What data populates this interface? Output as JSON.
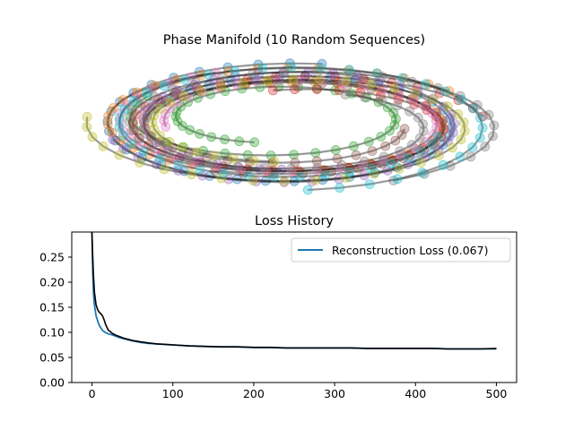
{
  "chart_data": [
    {
      "type": "scatter",
      "title": "Phase Manifold (10 Random Sequences)",
      "axes_visible": false,
      "marker": "circle",
      "marker_alpha": 0.35,
      "path_color": "#000000",
      "path_alpha": 0.25,
      "palette": [
        "#1f77b4",
        "#ff7f0e",
        "#2ca02c",
        "#d62728",
        "#9467bd",
        "#8c564b",
        "#e377c2",
        "#7f7f7f",
        "#bcbd22",
        "#17becf"
      ],
      "series": [
        {
          "center": [
            -0.05,
            0.0
          ],
          "radius": [
            1.95,
            0.82
          ],
          "turns": 1.25,
          "decay": 0.25,
          "phase": 1.4
        },
        {
          "center": [
            -0.08,
            0.03
          ],
          "radius": [
            2.0,
            0.75
          ],
          "turns": 1.2,
          "decay": 0.28,
          "phase": 0.6
        },
        {
          "center": [
            -0.2,
            0.1
          ],
          "radius": [
            1.5,
            0.55
          ],
          "turns": 1.3,
          "decay": 0.4,
          "phase": 2.6
        },
        {
          "center": [
            0.05,
            -0.02
          ],
          "radius": [
            1.9,
            0.7
          ],
          "turns": 1.25,
          "decay": 0.3,
          "phase": 0.2
        },
        {
          "center": [
            -0.05,
            0.02
          ],
          "radius": [
            1.85,
            0.8
          ],
          "turns": 1.2,
          "decay": 0.25,
          "phase": 3.4
        },
        {
          "center": [
            -0.1,
            0.0
          ],
          "radius": [
            1.75,
            0.65
          ],
          "turns": 1.3,
          "decay": 0.3,
          "phase": 4.3
        },
        {
          "center": [
            -0.05,
            0.04
          ],
          "radius": [
            1.8,
            0.72
          ],
          "turns": 1.2,
          "decay": 0.3,
          "phase": 2.0
        },
        {
          "center": [
            0.0,
            0.0
          ],
          "radius": [
            2.15,
            0.82
          ],
          "turns": 1.35,
          "decay": 0.45,
          "phase": 5.2
        },
        {
          "center": [
            -0.02,
            0.0
          ],
          "radius": [
            2.1,
            0.8
          ],
          "turns": 1.25,
          "decay": 0.4,
          "phase": 3.0
        },
        {
          "center": [
            -0.04,
            0.0
          ],
          "radius": [
            2.05,
            0.85
          ],
          "turns": 1.2,
          "decay": 0.25,
          "phase": 4.8
        }
      ],
      "points_per_series": 48
    },
    {
      "type": "line",
      "title": "Loss History",
      "xlabel": "",
      "ylabel": "",
      "xlim": [
        -25,
        525
      ],
      "ylim": [
        0.0,
        0.3
      ],
      "xticks": [
        0,
        100,
        200,
        300,
        400,
        500
      ],
      "yticks": [
        0.0,
        0.05,
        0.1,
        0.15,
        0.2,
        0.25
      ],
      "ytick_labels": [
        "0.00",
        "0.05",
        "0.10",
        "0.15",
        "0.20",
        "0.25"
      ],
      "legend": {
        "placement": "top-right",
        "entry": "Reconstruction Loss (0.067)"
      },
      "series": [
        {
          "name": "Reconstruction Loss (0.067)",
          "color": "#1f77b4",
          "x": [
            0,
            1,
            2,
            3,
            5,
            8,
            10,
            13,
            16,
            20,
            25,
            30,
            35,
            40,
            50,
            60,
            70,
            80,
            90,
            100,
            120,
            140,
            160,
            180,
            200,
            220,
            240,
            260,
            280,
            300,
            320,
            340,
            360,
            380,
            400,
            420,
            440,
            460,
            480,
            500
          ],
          "y": [
            0.3,
            0.22,
            0.175,
            0.155,
            0.133,
            0.118,
            0.111,
            0.104,
            0.1,
            0.097,
            0.095,
            0.092,
            0.089,
            0.087,
            0.083,
            0.08,
            0.078,
            0.077,
            0.076,
            0.075,
            0.073,
            0.072,
            0.071,
            0.071,
            0.07,
            0.07,
            0.069,
            0.069,
            0.069,
            0.069,
            0.069,
            0.068,
            0.068,
            0.068,
            0.068,
            0.068,
            0.067,
            0.067,
            0.067,
            0.067
          ]
        },
        {
          "name": "",
          "color": "#000000",
          "x": [
            0,
            1,
            2,
            3,
            5,
            7,
            9,
            11,
            13,
            15,
            17,
            20,
            25,
            30,
            35,
            40,
            50,
            60,
            70,
            80,
            90,
            100,
            120,
            140,
            160,
            180,
            200,
            220,
            240,
            260,
            280,
            300,
            320,
            340,
            360,
            380,
            400,
            420,
            440,
            460,
            480,
            500
          ],
          "y": [
            0.3,
            0.25,
            0.21,
            0.18,
            0.155,
            0.145,
            0.14,
            0.137,
            0.133,
            0.125,
            0.115,
            0.105,
            0.098,
            0.094,
            0.091,
            0.088,
            0.084,
            0.081,
            0.079,
            0.077,
            0.076,
            0.075,
            0.073,
            0.072,
            0.071,
            0.071,
            0.07,
            0.07,
            0.069,
            0.069,
            0.069,
            0.069,
            0.069,
            0.068,
            0.068,
            0.068,
            0.068,
            0.068,
            0.067,
            0.067,
            0.067,
            0.068
          ]
        }
      ]
    }
  ]
}
